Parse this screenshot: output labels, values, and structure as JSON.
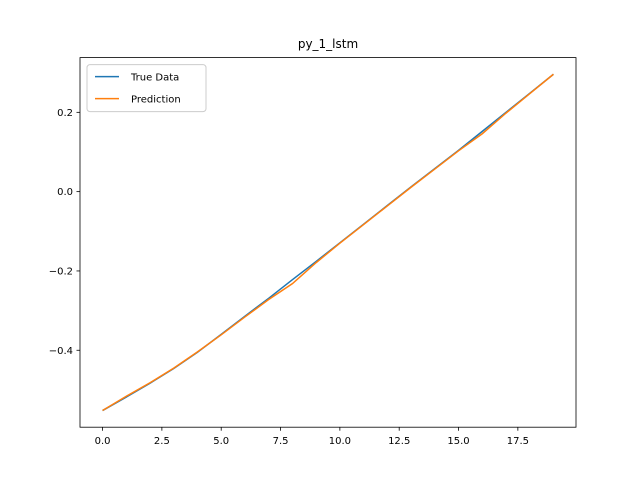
{
  "chart_data": {
    "type": "line",
    "title": "py_1_lstm",
    "x": [
      0,
      1,
      2,
      3,
      4,
      5,
      6,
      7,
      8,
      9,
      10,
      11,
      12,
      13,
      14,
      15,
      16,
      17,
      18,
      19
    ],
    "series": [
      {
        "name": "True Data",
        "color": "#1f77b4",
        "values": [
          -0.552,
          -0.518,
          -0.483,
          -0.446,
          -0.405,
          -0.36,
          -0.314,
          -0.269,
          -0.222,
          -0.176,
          -0.129,
          -0.082,
          -0.035,
          0.012,
          0.058,
          0.104,
          0.152,
          0.2,
          0.248,
          0.296
        ]
      },
      {
        "name": "Prediction",
        "color": "#ff7f0e",
        "values": [
          -0.552,
          -0.516,
          -0.482,
          -0.445,
          -0.404,
          -0.361,
          -0.316,
          -0.272,
          -0.232,
          -0.179,
          -0.13,
          -0.083,
          -0.036,
          0.011,
          0.057,
          0.103,
          0.146,
          0.198,
          0.247,
          0.296
        ]
      }
    ],
    "xlim": [
      -0.95,
      19.95
    ],
    "xticks": [
      {
        "value": 0,
        "label": "0.0"
      },
      2.5,
      {
        "value": 5,
        "label": "5.0"
      },
      7.5,
      {
        "value": 10,
        "label": "10.0"
      },
      12.5,
      {
        "value": 15,
        "label": "15.0"
      },
      17.5
    ],
    "ylim": [
      -0.594,
      0.338
    ],
    "yticks": [
      {
        "value": -0.4,
        "label": "−0.4"
      },
      {
        "value": -0.2,
        "label": "−0.2"
      },
      {
        "value": 0,
        "label": "0.0"
      },
      0.2
    ],
    "legend": "upper left"
  }
}
